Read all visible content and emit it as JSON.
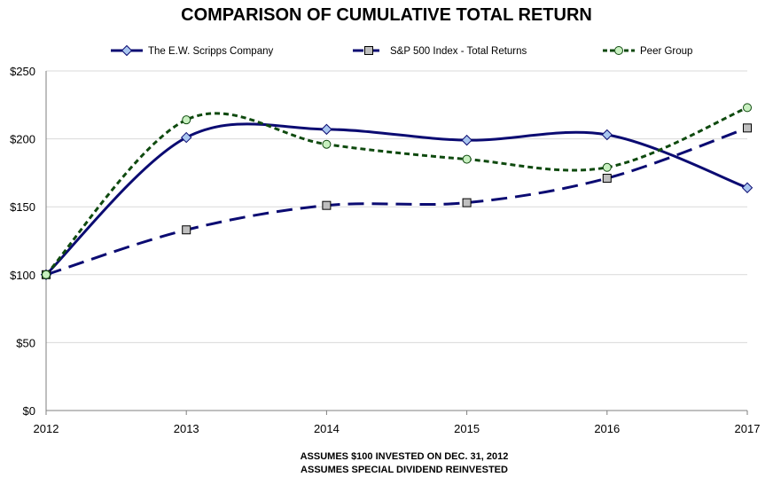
{
  "colors": {
    "scripps": "#0b0b72",
    "sp500": "#0b0b72",
    "peer": "#0f4a0f",
    "scripps_marker": "#a9c6ef",
    "sp500_marker": "#bfbfbf",
    "peer_marker": "#c8f0c0",
    "grid": "#d9d9d9",
    "axis": "#7f7f7f"
  },
  "notes": [
    "ASSUMES $100 INVESTED ON DEC. 31, 2012",
    "ASSUMES SPECIAL DIVIDEND REINVESTED"
  ],
  "chart_data": {
    "type": "line",
    "title": "COMPARISON OF CUMULATIVE TOTAL RETURN",
    "x": [
      "2012",
      "2013",
      "2014",
      "2015",
      "2016",
      "2017"
    ],
    "ylim": [
      0,
      250
    ],
    "yticks": [
      0,
      50,
      100,
      150,
      200,
      250
    ],
    "ytick_labels": [
      "$0",
      "$50",
      "$100",
      "$150",
      "$200",
      "$250"
    ],
    "grid": "horizontal",
    "smoothed": true,
    "legend_position": "top",
    "series": [
      {
        "name": "The E.W. Scripps Company",
        "marker": "diamond",
        "dash": "solid",
        "values": [
          100,
          201,
          207,
          199,
          203,
          164
        ]
      },
      {
        "name": "S&P 500 Index - Total Returns",
        "marker": "square",
        "dash": "long-dash",
        "values": [
          100,
          133,
          151,
          153,
          171,
          208
        ]
      },
      {
        "name": "Peer Group",
        "marker": "circle",
        "dash": "short-dash",
        "values": [
          100,
          214,
          196,
          185,
          179,
          223
        ]
      }
    ]
  }
}
